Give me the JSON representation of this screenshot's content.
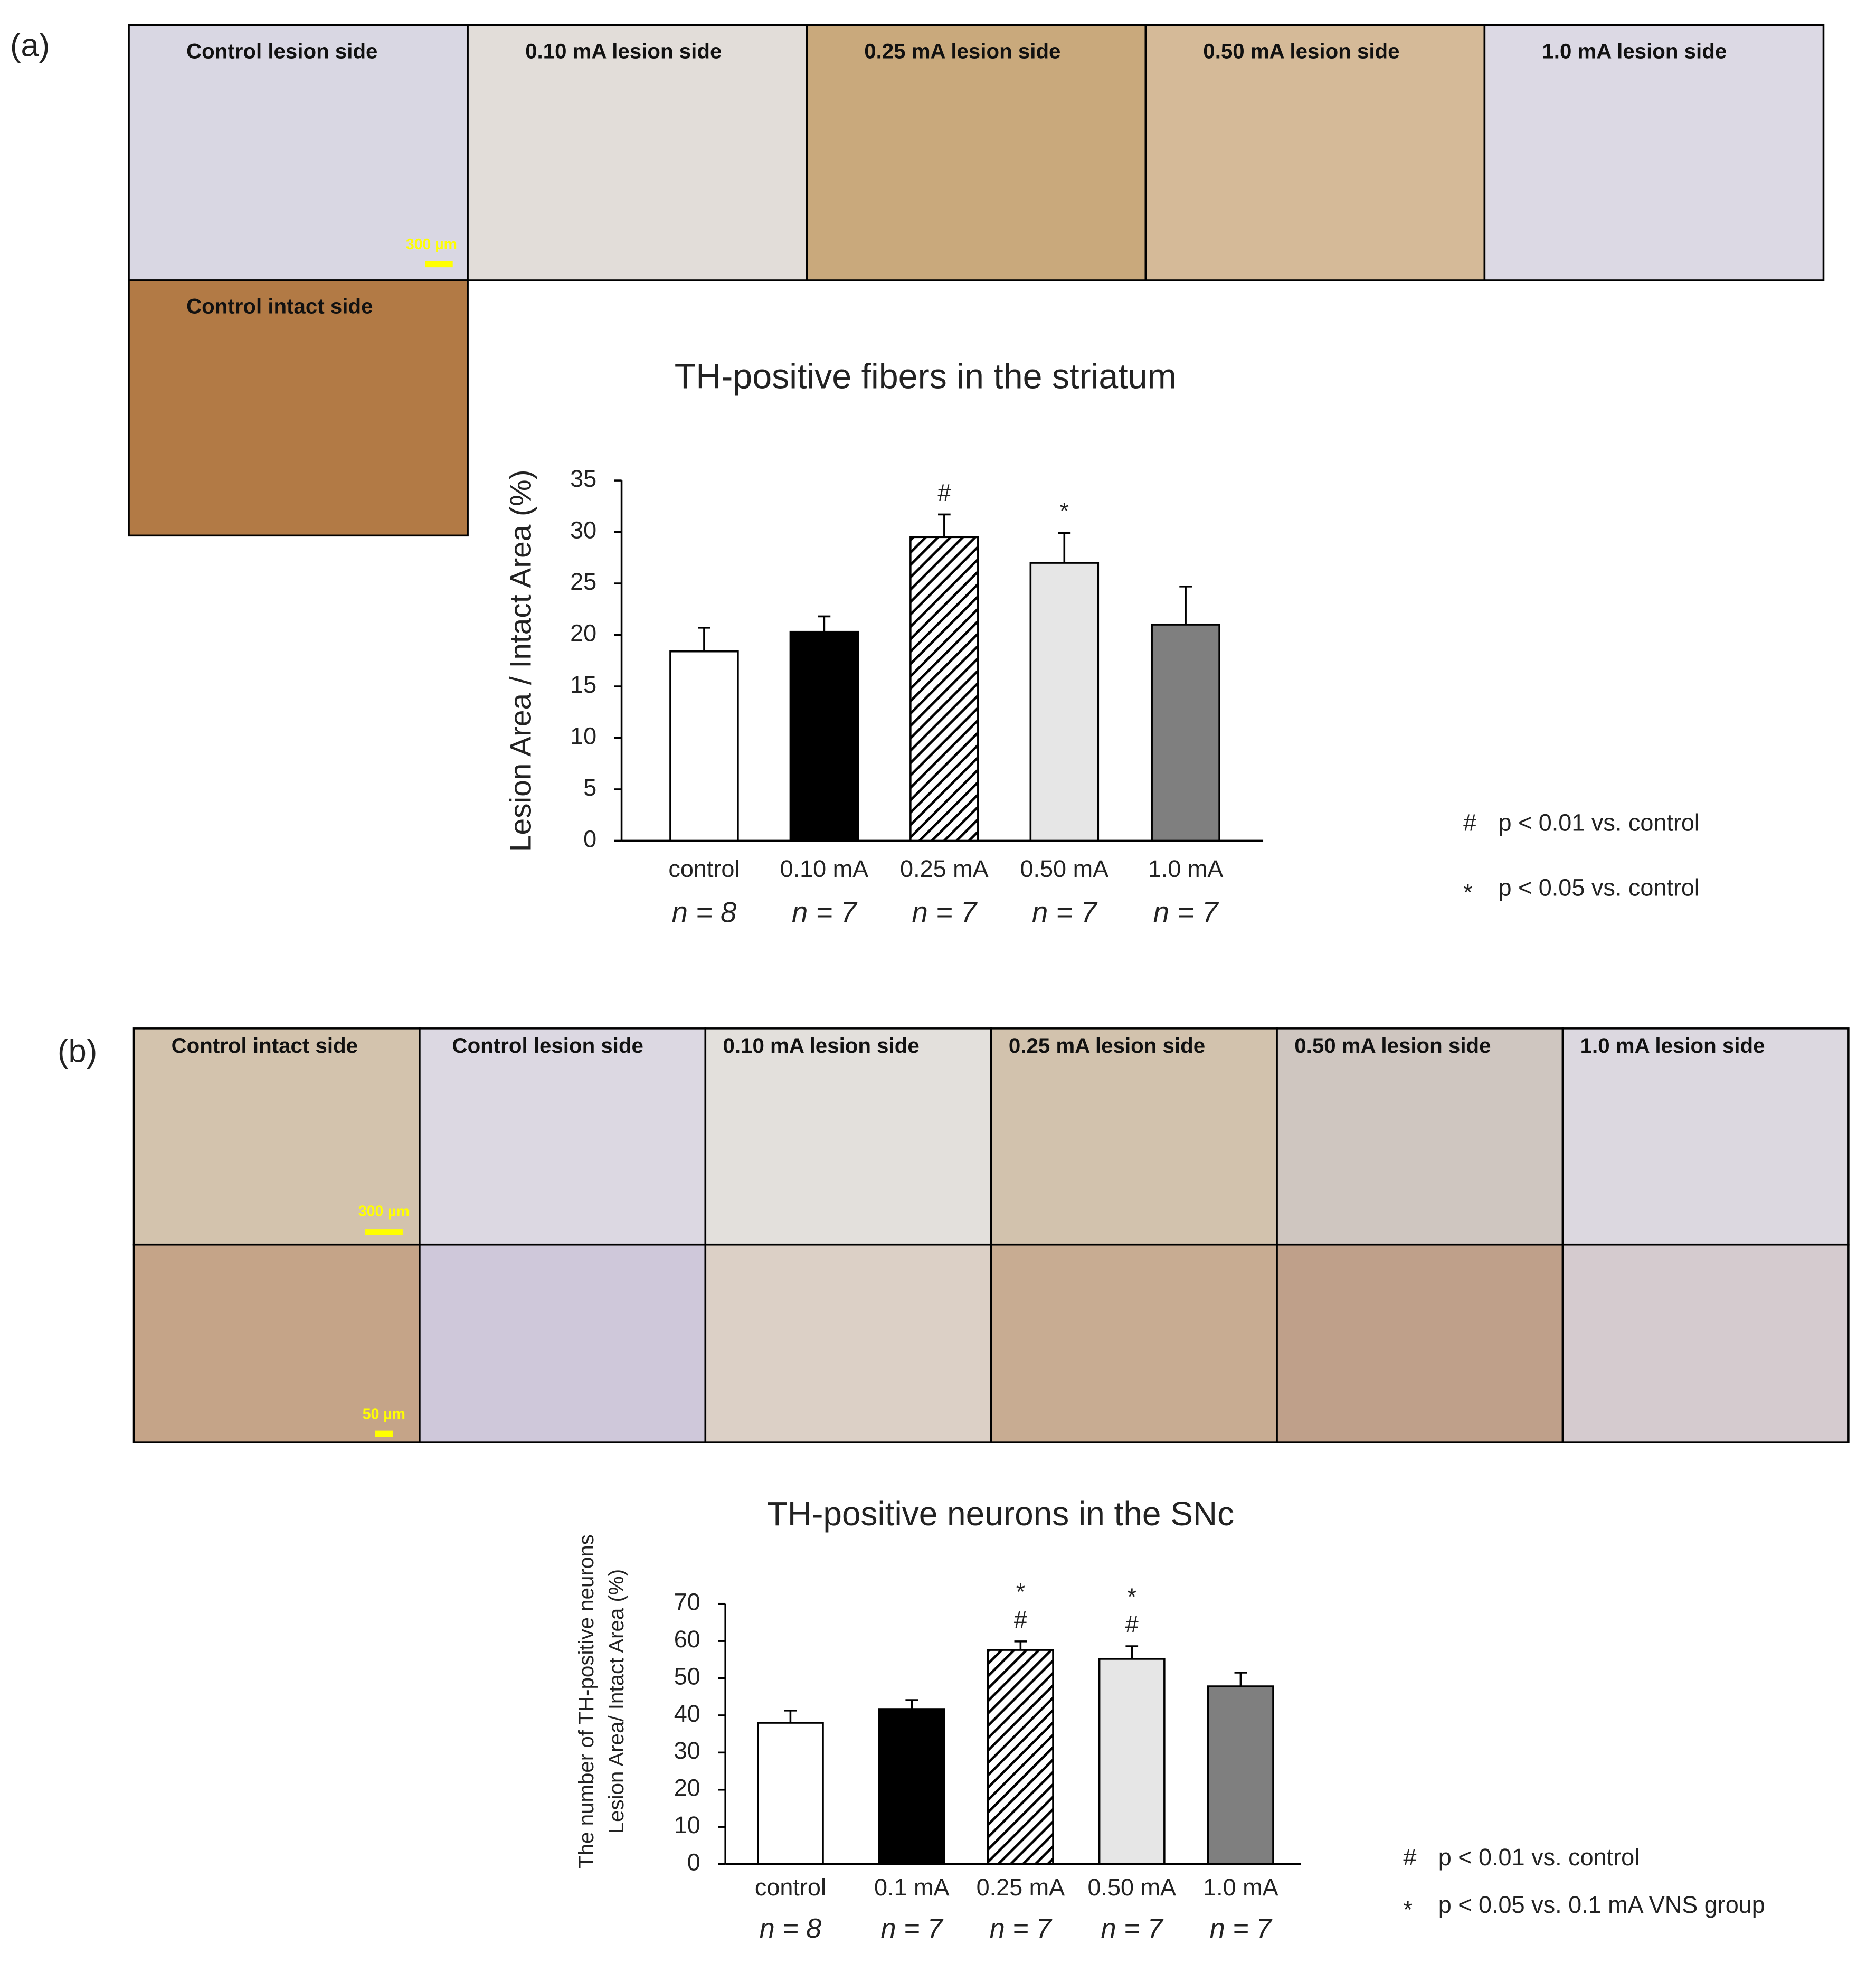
{
  "panels": [
    {
      "label": "(a)",
      "images": [
        {
          "label": "Control lesion side"
        },
        {
          "label": "0.10 mA  lesion side"
        },
        {
          "label": "0.25 mA  lesion side"
        },
        {
          "label": "0.50 mA  lesion side"
        },
        {
          "label": "1.0 mA  lesion side"
        },
        {
          "label": "Control intact side"
        }
      ],
      "scale_bars": [
        "300 µm"
      ]
    },
    {
      "label": "(b)",
      "images": [
        {
          "label": "Control intact side"
        },
        {
          "label": "Control lesion side"
        },
        {
          "label": "0.10 mA  lesion side"
        },
        {
          "label": "0.25 mA  lesion side"
        },
        {
          "label": "0.50 mA  lesion side"
        },
        {
          "label": "1.0 mA  lesion side"
        }
      ],
      "scale_bars": [
        "300 µm",
        "50 µm"
      ]
    }
  ],
  "chart_data": [
    {
      "type": "bar",
      "title": "TH-positive fibers in the striatum",
      "ylabel": [
        "Lesion Area / Intact Area (%)"
      ],
      "categories": [
        "control",
        "0.10 mA",
        "0.25 mA",
        "0.50 mA",
        "1.0 mA"
      ],
      "n_labels": [
        "n = 8",
        "n = 7",
        "n = 7",
        "n = 7",
        "n = 7"
      ],
      "values": [
        18.4,
        20.3,
        29.5,
        27.0,
        21.0
      ],
      "errors": [
        2.3,
        1.5,
        2.2,
        2.9,
        3.7
      ],
      "colors": [
        "#ffffff",
        "#000000",
        "hatch",
        "#e6e6e6",
        "#7f7f7f"
      ],
      "significance": [
        null,
        null,
        [
          "#"
        ],
        [
          "*"
        ],
        null
      ],
      "ylim": [
        0,
        35
      ],
      "yticks": [
        0,
        5,
        10,
        15,
        20,
        25,
        30,
        35
      ],
      "notes": [
        {
          "symbol": "#",
          "text": "p < 0.01 vs. control"
        },
        {
          "symbol": "*",
          "text": "p < 0.05 vs. control"
        }
      ]
    },
    {
      "type": "bar",
      "title": "TH-positive neurons in the SNc",
      "ylabel": [
        "The number of TH-positive neurons",
        "Lesion Area/ Intact Area (%)"
      ],
      "categories": [
        "control",
        "0.1 mA",
        "0.25 mA",
        "0.50 mA",
        "1.0 mA"
      ],
      "n_labels": [
        "n = 8",
        "n = 7",
        "n = 7",
        "n = 7",
        "n = 7"
      ],
      "values": [
        38.0,
        41.7,
        57.6,
        55.2,
        47.8
      ],
      "errors": [
        3.3,
        2.4,
        2.3,
        3.4,
        3.7
      ],
      "colors": [
        "#ffffff",
        "#000000",
        "hatch",
        "#e6e6e6",
        "#7f7f7f"
      ],
      "significance": [
        null,
        null,
        [
          "*",
          "#"
        ],
        [
          "*",
          "#"
        ],
        null
      ],
      "ylim": [
        0,
        70
      ],
      "yticks": [
        0,
        10,
        20,
        30,
        40,
        50,
        60,
        70
      ],
      "notes": [
        {
          "symbol": "#",
          "text": "p < 0.01 vs. control"
        },
        {
          "symbol": "*",
          "text": "p < 0.05 vs. 0.1 mA VNS group"
        }
      ]
    }
  ]
}
